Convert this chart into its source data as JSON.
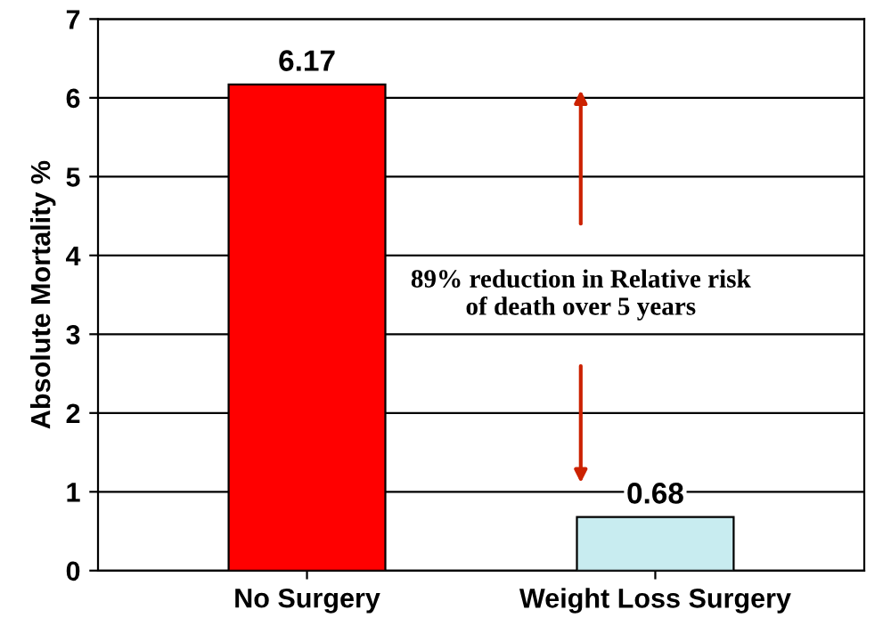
{
  "chart_data": {
    "type": "bar",
    "categories": [
      "No Surgery",
      "Weight Loss Surgery"
    ],
    "values": [
      6.17,
      0.68
    ],
    "colors": [
      "#ff0000",
      "#c8ecf0"
    ],
    "ylabel": "Absolute Mortality %",
    "ylim": [
      0,
      7
    ],
    "yticks": [
      0,
      1,
      2,
      3,
      4,
      5,
      6,
      7
    ],
    "grid": "y",
    "data_labels": true,
    "annotations": [
      "89% reduction in Relative risk of death over 5 years"
    ]
  }
}
